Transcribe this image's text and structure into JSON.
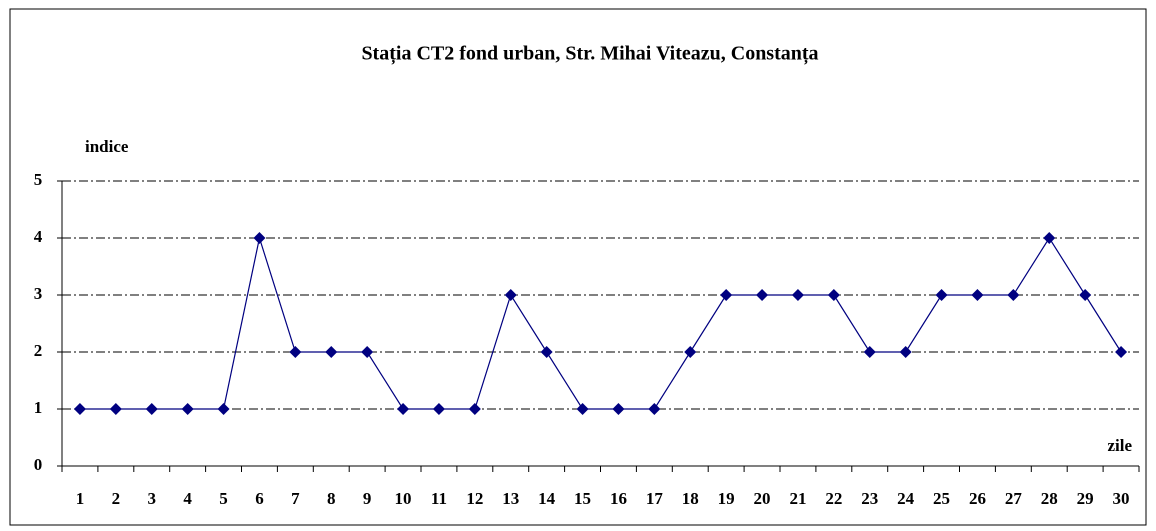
{
  "chart_data": {
    "type": "line",
    "title": "Stația CT2 fond urban, Str. Mihai Viteazu, Constanța",
    "y_label": "indice",
    "x_label": "zile",
    "categories": [
      "1",
      "2",
      "3",
      "4",
      "5",
      "6",
      "7",
      "8",
      "9",
      "10",
      "11",
      "12",
      "13",
      "14",
      "15",
      "16",
      "17",
      "18",
      "19",
      "20",
      "21",
      "22",
      "23",
      "24",
      "25",
      "26",
      "27",
      "28",
      "29",
      "30"
    ],
    "series": [
      {
        "name": "indice",
        "color": "#000080",
        "values": [
          1,
          1,
          1,
          1,
          1,
          4,
          2,
          2,
          2,
          1,
          1,
          1,
          3,
          2,
          1,
          1,
          1,
          2,
          3,
          3,
          3,
          3,
          2,
          2,
          3,
          3,
          3,
          4,
          3,
          2
        ]
      }
    ],
    "ylim": [
      0,
      5
    ],
    "yticks": [
      0,
      1,
      2,
      3,
      4,
      5
    ],
    "grid": true
  }
}
